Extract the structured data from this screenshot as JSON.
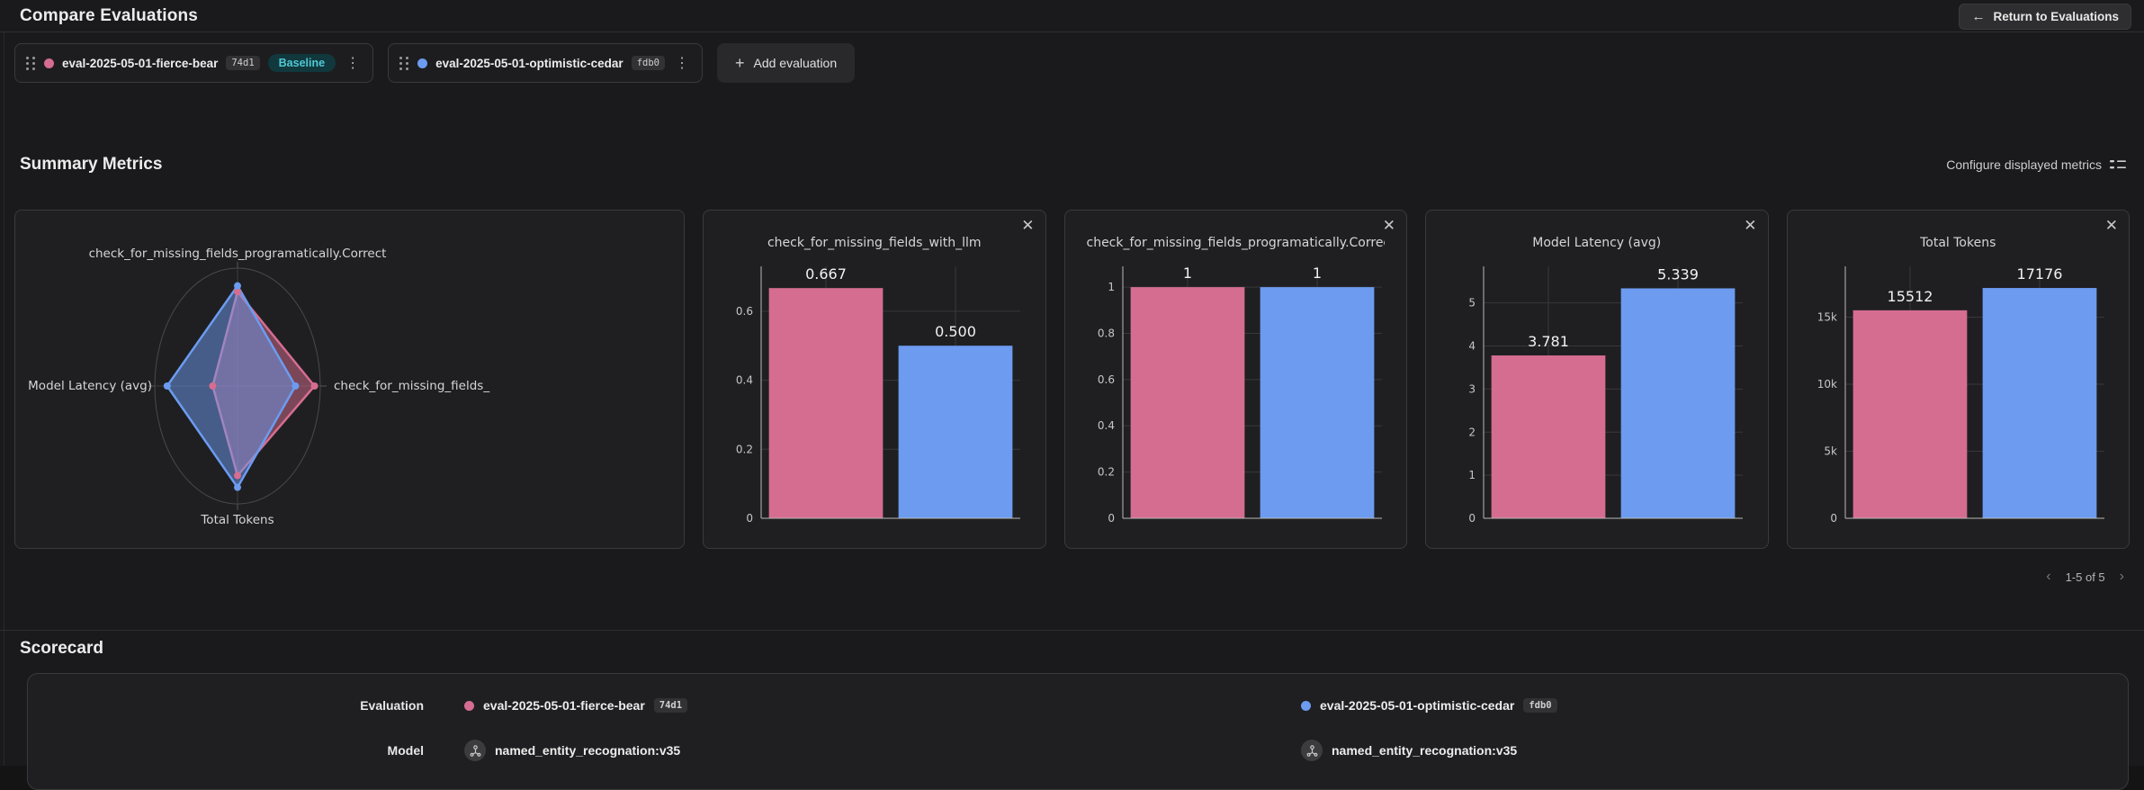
{
  "colors": {
    "pink": "#d56d90",
    "blue": "#6c9bf0",
    "accent_teal": "#4fc9d4"
  },
  "icons": {
    "back_arrow": "←",
    "plus": "+",
    "kebab": "⋮",
    "close": "✕",
    "chevron_left": "‹",
    "chevron_right": "›"
  },
  "header": {
    "title": "Compare Evaluations",
    "return_label": "Return to Evaluations"
  },
  "toolbar": {
    "add_label": "Add evaluation"
  },
  "evaluations": [
    {
      "name": "eval-2025-05-01-fierce-bear",
      "hash": "74d1",
      "baseline_label": "Baseline",
      "color": "#d56d90",
      "model": "named_entity_recognation:v35"
    },
    {
      "name": "eval-2025-05-01-optimistic-cedar",
      "hash": "fdb0",
      "color": "#6c9bf0",
      "model": "named_entity_recognation:v35"
    }
  ],
  "summary_metrics": {
    "title": "Summary Metrics",
    "configure_label": "Configure displayed metrics",
    "pagination": {
      "range_label": "1-5 of 5"
    }
  },
  "scorecard": {
    "title": "Scorecard",
    "row_labels": [
      "Evaluation",
      "Model"
    ]
  },
  "chart_data": [
    {
      "type": "radar",
      "axes": [
        "check_for_missing_fields_programatically.Correct",
        "check_for_missing_fields_",
        "Total Tokens",
        "Model Latency (avg)"
      ],
      "series": [
        {
          "name": "eval-2025-05-01-fierce-bear",
          "color": "#d56d90",
          "values": [
            1,
            0.667,
            15512,
            3.781
          ],
          "normalized": [
            0.8,
            0.93,
            0.76,
            0.3
          ]
        },
        {
          "name": "eval-2025-05-01-optimistic-cedar",
          "color": "#6c9bf0",
          "values": [
            1,
            0.5,
            17176,
            5.339
          ],
          "normalized": [
            0.85,
            0.7,
            0.86,
            0.85
          ]
        }
      ]
    },
    {
      "type": "bar",
      "title": "check_for_missing_fields_with_llm",
      "categories": [
        "eval-2025-05-01-fierce-bear",
        "eval-2025-05-01-optimistic-cedar"
      ],
      "values": [
        0.667,
        0.5
      ],
      "labels": [
        "0.667",
        "0.500"
      ],
      "yticks": [
        0,
        0.2,
        0.4,
        0.6
      ],
      "ytick_labels": [
        "0",
        "0.2",
        "0.4",
        "0.6"
      ],
      "ymax": 0.73
    },
    {
      "type": "bar",
      "title": "check_for_missing_fields_programatically.Correct",
      "categories": [
        "eval-2025-05-01-fierce-bear",
        "eval-2025-05-01-optimistic-cedar"
      ],
      "values": [
        1,
        1
      ],
      "labels": [
        "1",
        "1"
      ],
      "yticks": [
        0,
        0.2,
        0.4,
        0.6,
        0.8,
        1
      ],
      "ytick_labels": [
        "0",
        "0.2",
        "0.4",
        "0.6",
        "0.8",
        "1"
      ],
      "ymax": 1.09
    },
    {
      "type": "bar",
      "title": "Model Latency (avg)",
      "categories": [
        "eval-2025-05-01-fierce-bear",
        "eval-2025-05-01-optimistic-cedar"
      ],
      "values": [
        3.781,
        5.339
      ],
      "labels": [
        "3.781",
        "5.339"
      ],
      "yticks": [
        0,
        1,
        2,
        3,
        4,
        5
      ],
      "ytick_labels": [
        "0",
        "1",
        "2",
        "3",
        "4",
        "5"
      ],
      "ymax": 5.85
    },
    {
      "type": "bar",
      "title": "Total Tokens",
      "categories": [
        "eval-2025-05-01-fierce-bear",
        "eval-2025-05-01-optimistic-cedar"
      ],
      "values": [
        15512,
        17176
      ],
      "labels": [
        "15512",
        "17176"
      ],
      "yticks": [
        0,
        5000,
        10000,
        15000
      ],
      "ytick_labels": [
        "0",
        "5k",
        "10k",
        "15k"
      ],
      "ymax": 18790
    }
  ]
}
